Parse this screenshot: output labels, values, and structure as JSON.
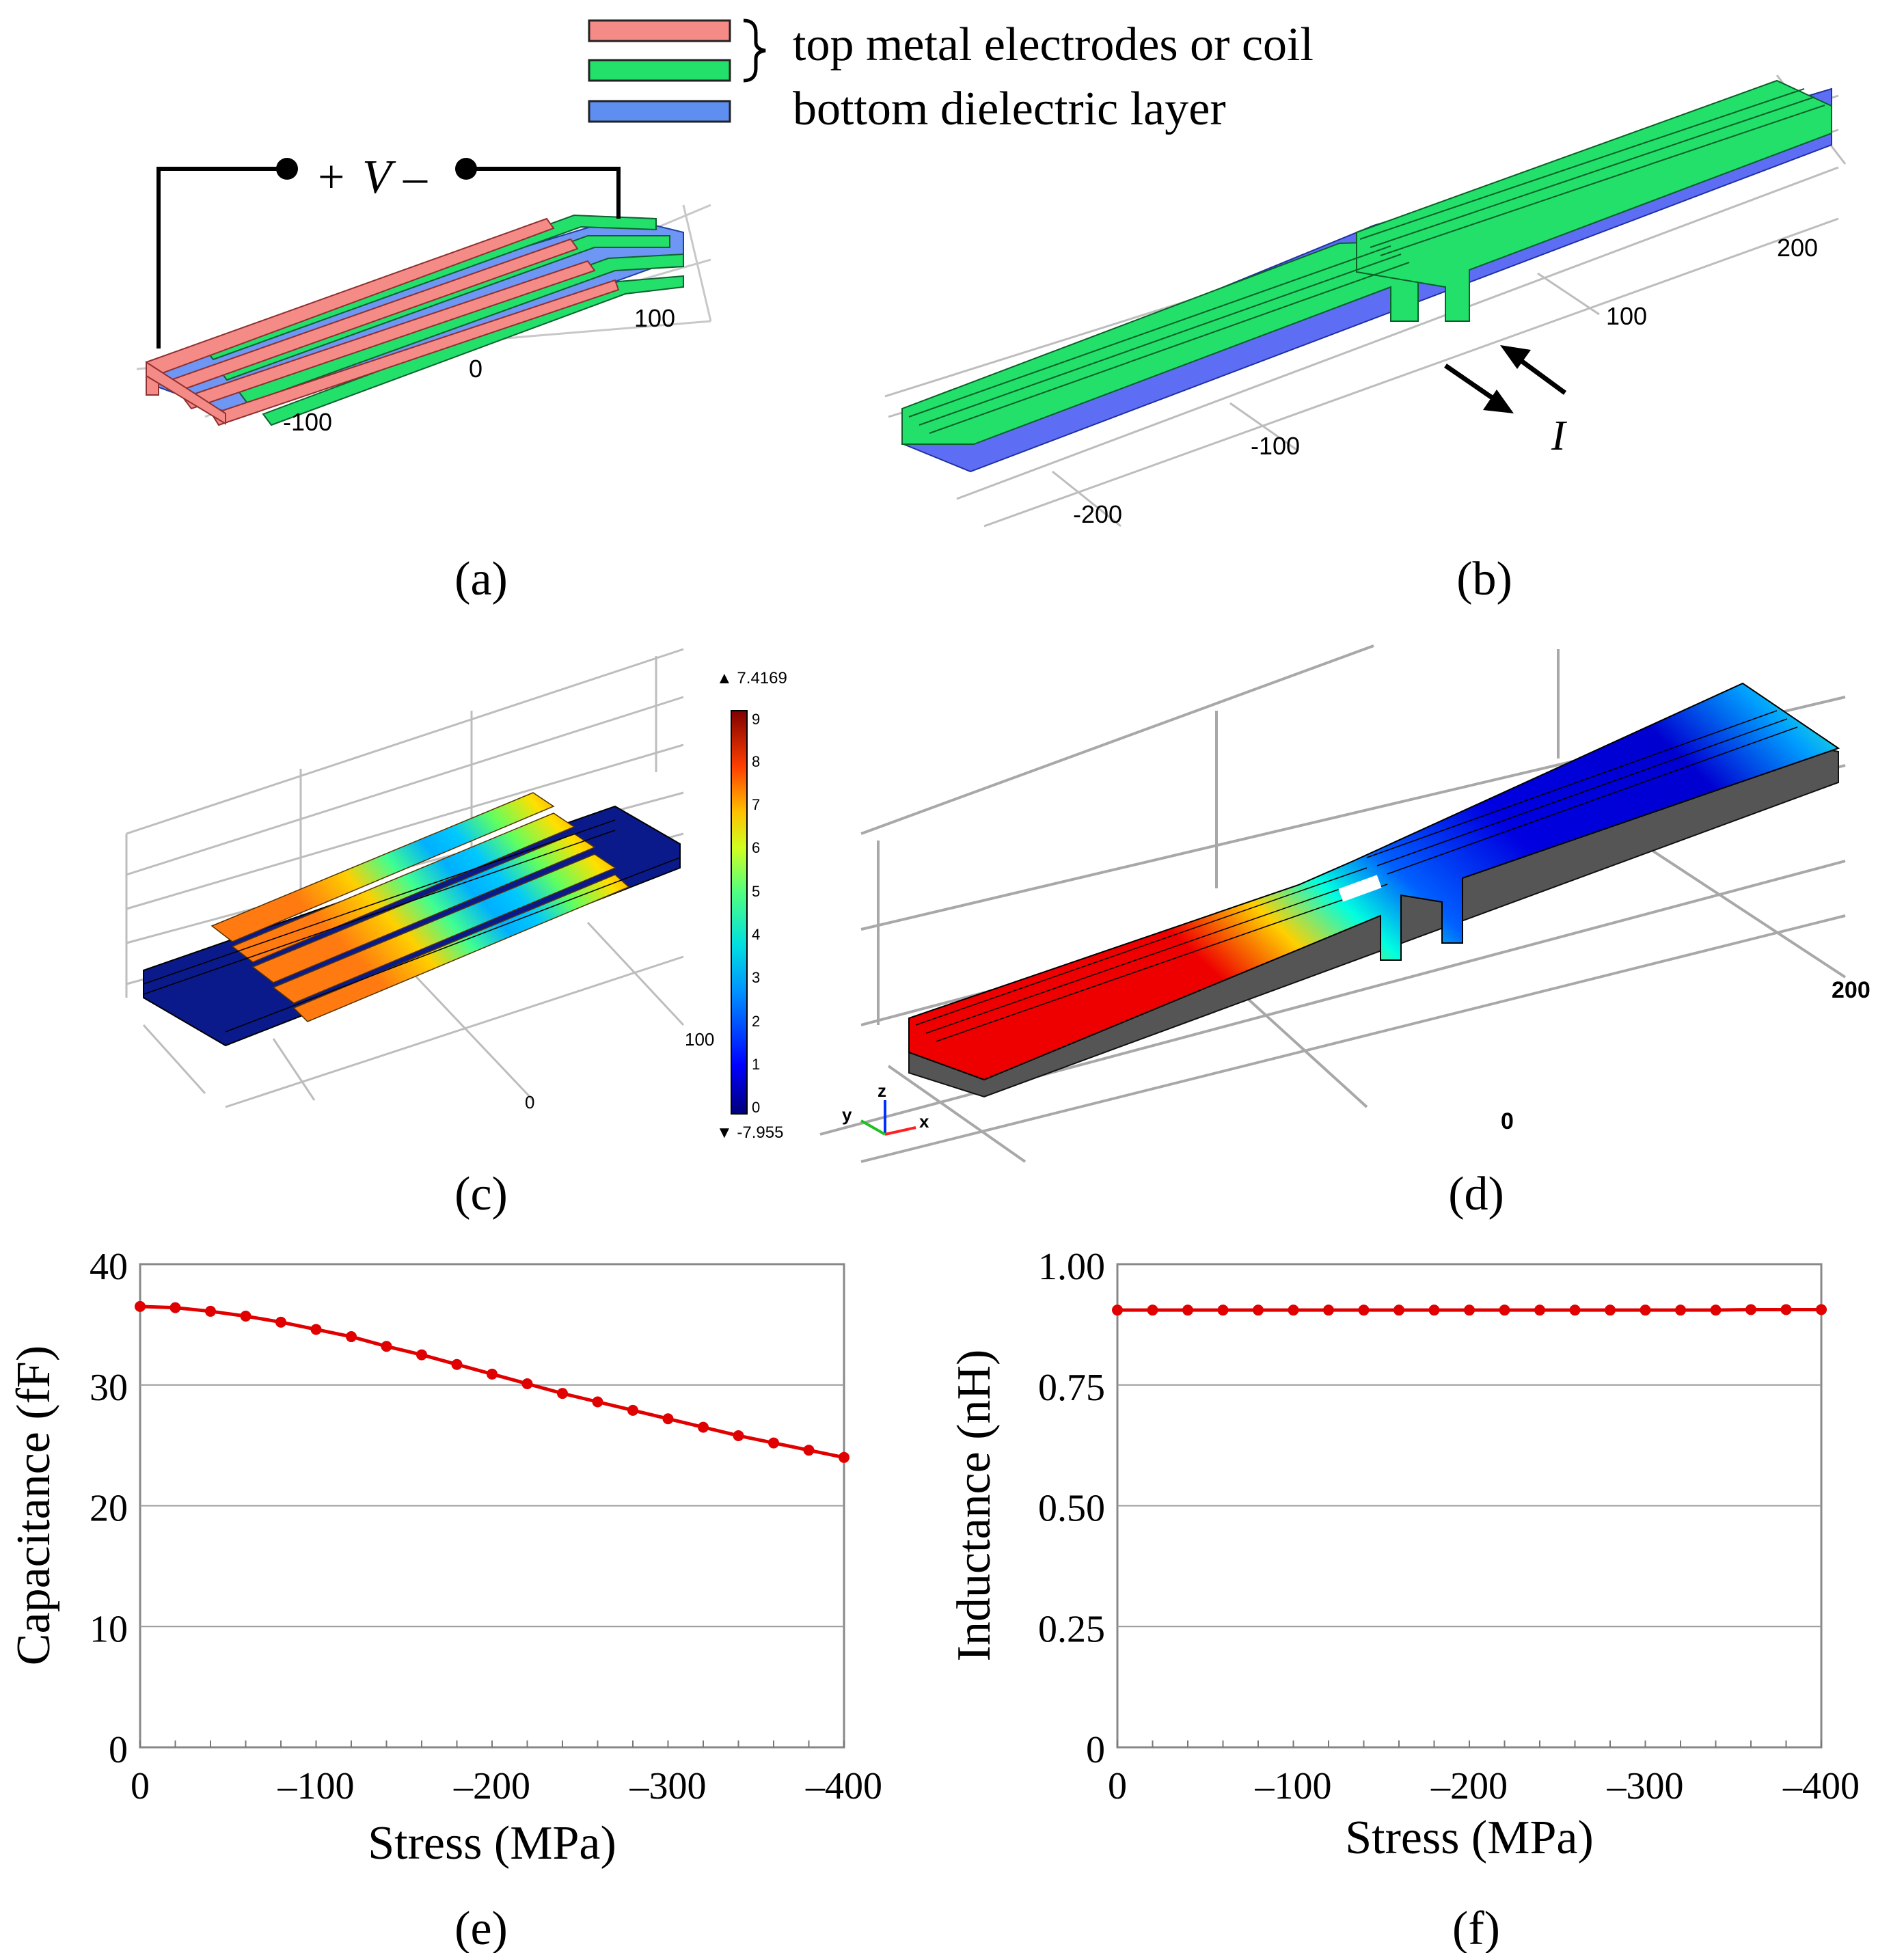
{
  "legend": {
    "items": [
      {
        "label": "top metal electrodes or coil",
        "colors": [
          "#f58b87",
          "#22e06a"
        ]
      },
      {
        "label": "bottom dielectric layer",
        "colors": [
          "#5d8ef0"
        ]
      }
    ]
  },
  "panels": {
    "a": {
      "caption": "(a)",
      "voltage_plus": "+",
      "voltage_symbol": "V",
      "voltage_minus": "–",
      "ticks": [
        "100",
        "0",
        "-100"
      ]
    },
    "b": {
      "caption": "(b)",
      "current_symbol": "I",
      "ticks": [
        "200",
        "100",
        "-100",
        "-200"
      ]
    },
    "c": {
      "caption": "(c)",
      "ticks": [
        "100",
        "0"
      ],
      "colorbar": {
        "max_label": "▲ 7.4169",
        "min_label": "▼ -7.955",
        "ticks": [
          "9",
          "8",
          "7",
          "6",
          "5",
          "4",
          "3",
          "2",
          "1",
          "0"
        ],
        "colors": [
          "#00007a",
          "#0000ff",
          "#0080ff",
          "#00e0e0",
          "#40ff90",
          "#c0ff30",
          "#ffd000",
          "#ff6000",
          "#e00000",
          "#800000"
        ]
      }
    },
    "d": {
      "caption": "(d)",
      "ticks": [
        "200",
        "0"
      ],
      "axes": {
        "x": "x",
        "y": "y",
        "z": "z"
      }
    },
    "e": {
      "caption": "(e)"
    },
    "f": {
      "caption": "(f)"
    }
  },
  "chart_data": [
    {
      "type": "line",
      "panel": "e",
      "title": "",
      "xlabel": "Stress (MPa)",
      "ylabel": "Capacitance (fF)",
      "xlim": [
        0,
        -400
      ],
      "ylim": [
        0,
        40
      ],
      "xticks": [
        "0",
        "–100",
        "–200",
        "–300",
        "–400"
      ],
      "yticks": [
        "0",
        "10",
        "20",
        "30",
        "40"
      ],
      "grid": true,
      "color": "#e00000",
      "series": [
        {
          "name": "Capacitance",
          "x": [
            0,
            -20,
            -40,
            -60,
            -80,
            -100,
            -120,
            -140,
            -160,
            -180,
            -200,
            -220,
            -240,
            -260,
            -280,
            -300,
            -320,
            -340,
            -360,
            -380,
            -400
          ],
          "values": [
            36.5,
            36.4,
            36.1,
            35.7,
            35.2,
            34.6,
            34.0,
            33.2,
            32.5,
            31.7,
            30.9,
            30.1,
            29.3,
            28.6,
            27.9,
            27.2,
            26.5,
            25.8,
            25.2,
            24.6,
            24.0
          ]
        }
      ]
    },
    {
      "type": "line",
      "panel": "f",
      "title": "",
      "xlabel": "Stress (MPa)",
      "ylabel": "Inductance (nH)",
      "xlim": [
        0,
        -400
      ],
      "ylim": [
        0,
        1.0
      ],
      "xticks": [
        "0",
        "–100",
        "–200",
        "–300",
        "–400"
      ],
      "yticks": [
        "0",
        "0.25",
        "0.50",
        "0.75",
        "1.00"
      ],
      "grid": true,
      "color": "#e00000",
      "series": [
        {
          "name": "Inductance",
          "x": [
            0,
            -20,
            -40,
            -60,
            -80,
            -100,
            -120,
            -140,
            -160,
            -180,
            -200,
            -220,
            -240,
            -260,
            -280,
            -300,
            -320,
            -340,
            -360,
            -380,
            -400
          ],
          "values": [
            0.905,
            0.905,
            0.905,
            0.905,
            0.905,
            0.905,
            0.905,
            0.905,
            0.905,
            0.905,
            0.905,
            0.905,
            0.905,
            0.905,
            0.905,
            0.905,
            0.905,
            0.905,
            0.906,
            0.906,
            0.906
          ]
        }
      ]
    }
  ]
}
